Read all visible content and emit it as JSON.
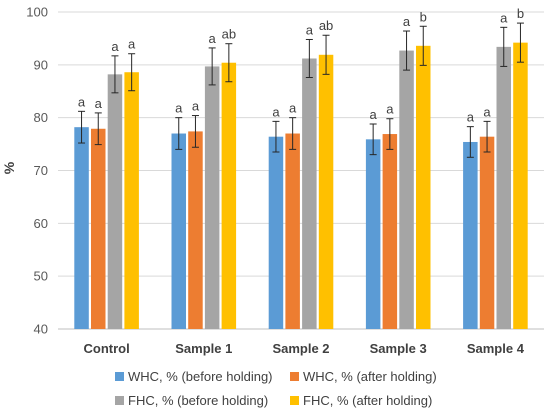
{
  "chart_data": {
    "type": "bar",
    "ylabel": "%",
    "ylim": [
      40,
      100
    ],
    "yticks": [
      40,
      50,
      60,
      70,
      80,
      90,
      100
    ],
    "grid": true,
    "legend_position": "bottom",
    "categories": [
      "Control",
      "Sample 1",
      "Sample 2",
      "Sample 3",
      "Sample 4"
    ],
    "series": [
      {
        "name": "WHC, % (before holding)",
        "color": "#5B9BD5",
        "values": [
          78.2,
          77.0,
          76.4,
          75.9,
          75.4
        ],
        "errors": [
          3.0,
          3.0,
          2.9,
          2.9,
          2.9
        ],
        "labels": [
          "a",
          "a",
          "a",
          "a",
          "a"
        ]
      },
      {
        "name": "WHC, % (after holding)",
        "color": "#ED7D31",
        "values": [
          77.9,
          77.4,
          77.0,
          76.9,
          76.4
        ],
        "errors": [
          3.0,
          3.0,
          3.0,
          2.9,
          2.9
        ],
        "labels": [
          "a",
          "a",
          "a",
          "a",
          "a"
        ]
      },
      {
        "name": "FHC, % (before holding)",
        "color": "#A5A5A5",
        "values": [
          88.2,
          89.7,
          91.2,
          92.7,
          93.4
        ],
        "errors": [
          3.5,
          3.5,
          3.6,
          3.7,
          3.7
        ],
        "labels": [
          "a",
          "a",
          "a",
          "a",
          "a"
        ]
      },
      {
        "name": "FHC, % (after holding)",
        "color": "#FFC000",
        "values": [
          88.6,
          90.4,
          91.9,
          93.6,
          94.2
        ],
        "errors": [
          3.5,
          3.6,
          3.7,
          3.7,
          3.7
        ],
        "labels": [
          "a",
          "ab",
          "ab",
          "b",
          "b"
        ]
      }
    ]
  }
}
